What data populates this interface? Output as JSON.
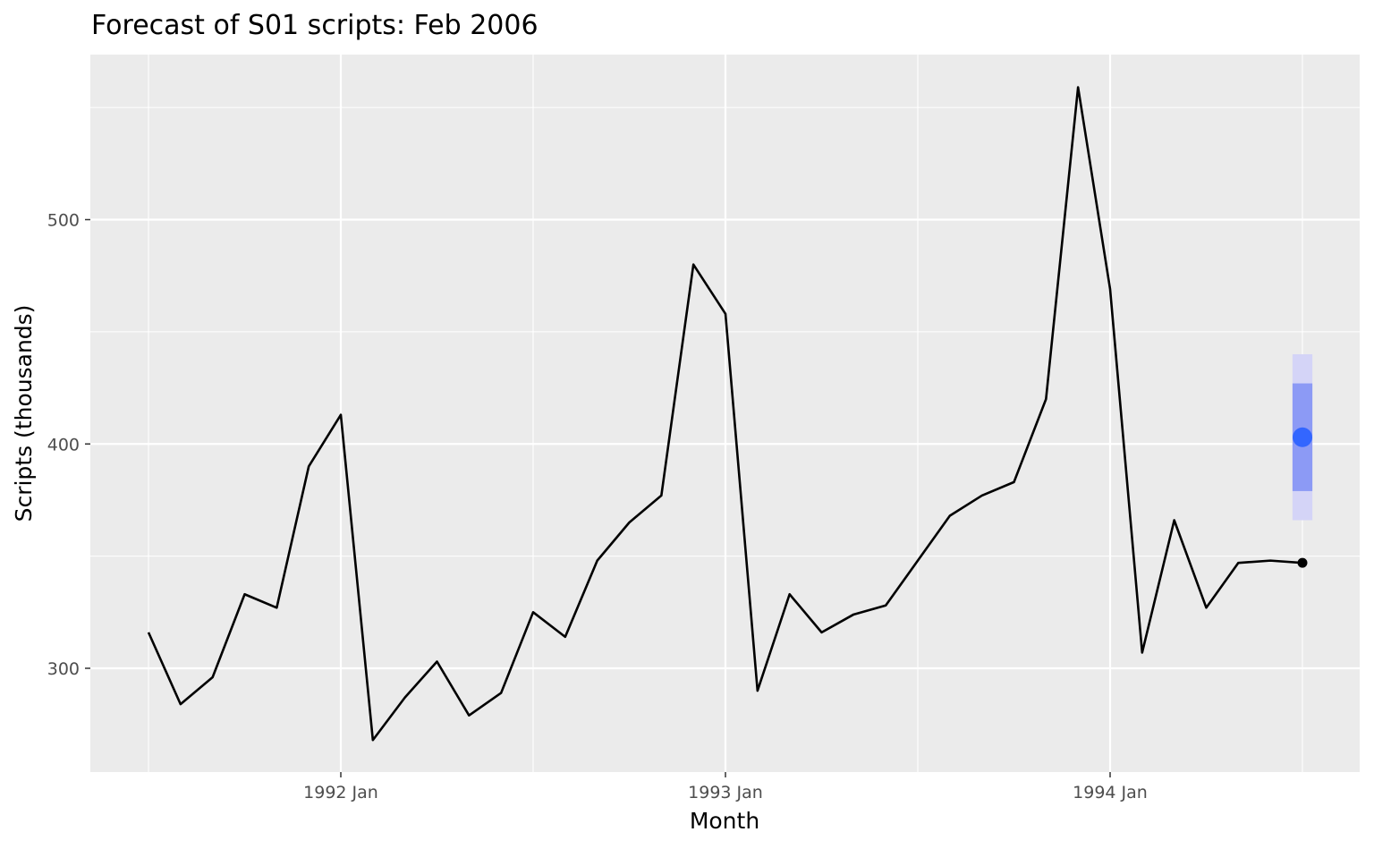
{
  "chart_data": {
    "type": "line",
    "title": "Forecast of S01 scripts: Feb 2006",
    "xlabel": "Month",
    "ylabel": "Scripts (thousands)",
    "x_ticks": [
      "1992 Jan",
      "1993 Jan",
      "1994 Jan"
    ],
    "y_ticks": [
      300,
      400,
      500
    ],
    "ylim": [
      255,
      560
    ],
    "grid": true,
    "series": [
      {
        "x": [
          "1991 Jul",
          "1991 Aug",
          "1991 Sep",
          "1991 Oct",
          "1991 Nov",
          "1991 Dec",
          "1992 Jan",
          "1992 Feb",
          "1992 Mar",
          "1992 Apr",
          "1992 May",
          "1992 Jun",
          "1992 Jul",
          "1992 Aug",
          "1992 Sep",
          "1992 Oct",
          "1992 Nov",
          "1992 Dec",
          "1993 Jan",
          "1993 Feb",
          "1993 Mar",
          "1993 Apr",
          "1993 May",
          "1993 Jun",
          "1993 Jul",
          "1993 Aug",
          "1993 Sep",
          "1993 Oct",
          "1993 Nov",
          "1993 Dec",
          "1994 Jan",
          "1994 Feb",
          "1994 Mar",
          "1994 Apr",
          "1994 May",
          "1994 Jun",
          "1994 Jul"
        ],
        "values": [
          316,
          284,
          296,
          333,
          327,
          390,
          413,
          268,
          287,
          303,
          279,
          289,
          325,
          314,
          348,
          365,
          377,
          480,
          458,
          290,
          333,
          316,
          324,
          328,
          348,
          368,
          377,
          383,
          420,
          559,
          469,
          307,
          366,
          327,
          347,
          348,
          347
        ],
        "color": "#000000"
      }
    ],
    "forecast": {
      "x": "1994 Jul",
      "point": 403,
      "interval_80": [
        379,
        427
      ],
      "interval_95": [
        366,
        440
      ],
      "color": "#3366ff",
      "band_80_color": "#8c9af5",
      "band_95_color": "#d4d4f7"
    },
    "panel_background": "#ebebeb",
    "grid_color": "#ffffff"
  }
}
